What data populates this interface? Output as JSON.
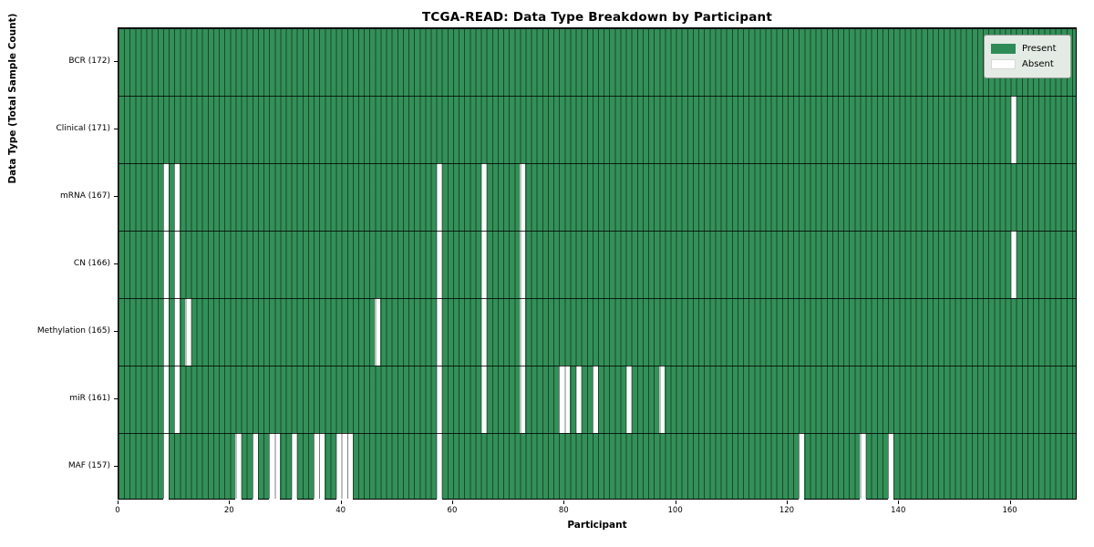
{
  "title": "TCGA-READ: Data Type Breakdown by Participant",
  "axes": {
    "xlabel": "Participant",
    "ylabel": "Data Type (Total Sample Count)"
  },
  "legend": {
    "present_label": "Present",
    "absent_label": "Absent"
  },
  "colors": {
    "present": "#2e8b57",
    "absent": "#ffffff",
    "background": "#ffffff"
  },
  "chart_data": {
    "type": "heatmap",
    "title": "TCGA-READ: Data Type Breakdown by Participant",
    "xlabel": "Participant",
    "ylabel": "Data Type (Total Sample Count)",
    "legend_entries": [
      {
        "label": "Present",
        "color": "#2e8b57"
      },
      {
        "label": "Absent",
        "color": "#ffffff"
      }
    ],
    "legend_position": "upper right",
    "grid": true,
    "n_participants": 172,
    "x_range": [
      0,
      172
    ],
    "x_ticks": [
      0,
      20,
      40,
      60,
      80,
      100,
      120,
      140,
      160
    ],
    "rows": [
      {
        "name": "BCR",
        "label": "BCR (172)",
        "present_count": 172,
        "absent_participants": []
      },
      {
        "name": "Clinical",
        "label": "Clinical (171)",
        "present_count": 171,
        "absent_participants": [
          160
        ]
      },
      {
        "name": "mRNA",
        "label": "mRNA (167)",
        "present_count": 167,
        "absent_participants": [
          8,
          10,
          57,
          65,
          72
        ]
      },
      {
        "name": "CN",
        "label": "CN (166)",
        "present_count": 166,
        "absent_participants": [
          8,
          10,
          57,
          65,
          72,
          160
        ]
      },
      {
        "name": "Methylation",
        "label": "Methylation (165)",
        "present_count": 165,
        "absent_participants": [
          8,
          10,
          12,
          46,
          57,
          65,
          72
        ]
      },
      {
        "name": "miR",
        "label": "miR (161)",
        "present_count": 161,
        "absent_participants": [
          8,
          10,
          57,
          65,
          72,
          79,
          80,
          82,
          85,
          91,
          97
        ]
      },
      {
        "name": "MAF",
        "label": "MAF (157)",
        "present_count": 157,
        "absent_participants": [
          8,
          21,
          24,
          27,
          28,
          31,
          35,
          36,
          39,
          40,
          41,
          57,
          122,
          133,
          138
        ]
      }
    ]
  }
}
